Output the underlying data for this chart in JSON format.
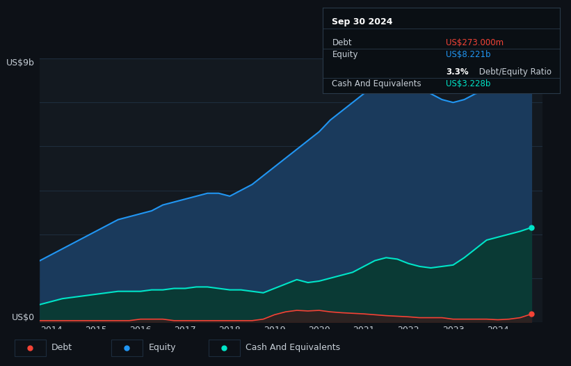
{
  "background_color": "#0d1117",
  "plot_bg_color": "#131920",
  "grid_color": "#1e2d3d",
  "title_color": "#c8d0d8",
  "years": [
    2013.75,
    2014.0,
    2014.25,
    2014.5,
    2014.75,
    2015.0,
    2015.25,
    2015.5,
    2015.75,
    2016.0,
    2016.25,
    2016.5,
    2016.75,
    2017.0,
    2017.25,
    2017.5,
    2017.75,
    2018.0,
    2018.25,
    2018.5,
    2018.75,
    2019.0,
    2019.25,
    2019.5,
    2019.75,
    2020.0,
    2020.25,
    2020.5,
    2020.75,
    2021.0,
    2021.25,
    2021.5,
    2021.75,
    2022.0,
    2022.25,
    2022.5,
    2022.75,
    2023.0,
    2023.25,
    2023.5,
    2023.75,
    2024.0,
    2024.25,
    2024.5,
    2024.75
  ],
  "equity": [
    2.1,
    2.3,
    2.5,
    2.7,
    2.9,
    3.1,
    3.3,
    3.5,
    3.6,
    3.7,
    3.8,
    4.0,
    4.1,
    4.2,
    4.3,
    4.4,
    4.4,
    4.3,
    4.5,
    4.7,
    5.0,
    5.3,
    5.6,
    5.9,
    6.2,
    6.5,
    6.9,
    7.2,
    7.5,
    7.8,
    8.2,
    8.4,
    8.5,
    8.4,
    8.1,
    7.8,
    7.6,
    7.5,
    7.6,
    7.8,
    7.9,
    8.0,
    8.1,
    8.15,
    8.221
  ],
  "cash": [
    0.6,
    0.7,
    0.8,
    0.85,
    0.9,
    0.95,
    1.0,
    1.05,
    1.05,
    1.05,
    1.1,
    1.1,
    1.15,
    1.15,
    1.2,
    1.2,
    1.15,
    1.1,
    1.1,
    1.05,
    1.0,
    1.15,
    1.3,
    1.45,
    1.35,
    1.4,
    1.5,
    1.6,
    1.7,
    1.9,
    2.1,
    2.2,
    2.15,
    2.0,
    1.9,
    1.85,
    1.9,
    1.95,
    2.2,
    2.5,
    2.8,
    2.9,
    3.0,
    3.1,
    3.228
  ],
  "debt": [
    0.05,
    0.05,
    0.05,
    0.05,
    0.05,
    0.05,
    0.05,
    0.05,
    0.05,
    0.1,
    0.1,
    0.1,
    0.05,
    0.05,
    0.05,
    0.05,
    0.05,
    0.05,
    0.05,
    0.05,
    0.1,
    0.25,
    0.35,
    0.4,
    0.38,
    0.4,
    0.35,
    0.32,
    0.3,
    0.28,
    0.25,
    0.22,
    0.2,
    0.18,
    0.15,
    0.15,
    0.15,
    0.1,
    0.1,
    0.1,
    0.1,
    0.08,
    0.1,
    0.15,
    0.273
  ],
  "equity_color": "#2196f3",
  "equity_fill": "#1a3a5c",
  "cash_color": "#00e5c8",
  "cash_fill": "#0a3a35",
  "debt_color": "#f44336",
  "debt_fill": "#3a1a1a",
  "ylim": [
    0,
    9
  ],
  "xlim": [
    2013.75,
    2025.0
  ],
  "xtick_years": [
    2014,
    2015,
    2016,
    2017,
    2018,
    2019,
    2020,
    2021,
    2022,
    2023,
    2024
  ],
  "ylabel_top": "US$9b",
  "ylabel_bottom": "US$0",
  "grid_levels": [
    0,
    1.5,
    3.0,
    4.5,
    6.0,
    7.5,
    9.0
  ],
  "infobox": {
    "title": "Sep 30 2024",
    "debt_label": "Debt",
    "debt_value": "US$273.000m",
    "equity_label": "Equity",
    "equity_value": "US$8.221b",
    "ratio_value": "3.3%",
    "ratio_label": " Debt/Equity Ratio",
    "cash_label": "Cash And Equivalents",
    "cash_value": "US$3.228b",
    "debt_color": "#f44336",
    "equity_color": "#2196f3",
    "cash_color": "#00e5c8",
    "bg_color": "#0a0f14",
    "border_color": "#2a3a4a",
    "text_color": "#c8d0d8",
    "title_color": "#ffffff"
  },
  "legend_items": [
    {
      "label": "Debt",
      "color": "#f44336"
    },
    {
      "label": "Equity",
      "color": "#2196f3"
    },
    {
      "label": "Cash And Equivalents",
      "color": "#00e5c8"
    }
  ]
}
